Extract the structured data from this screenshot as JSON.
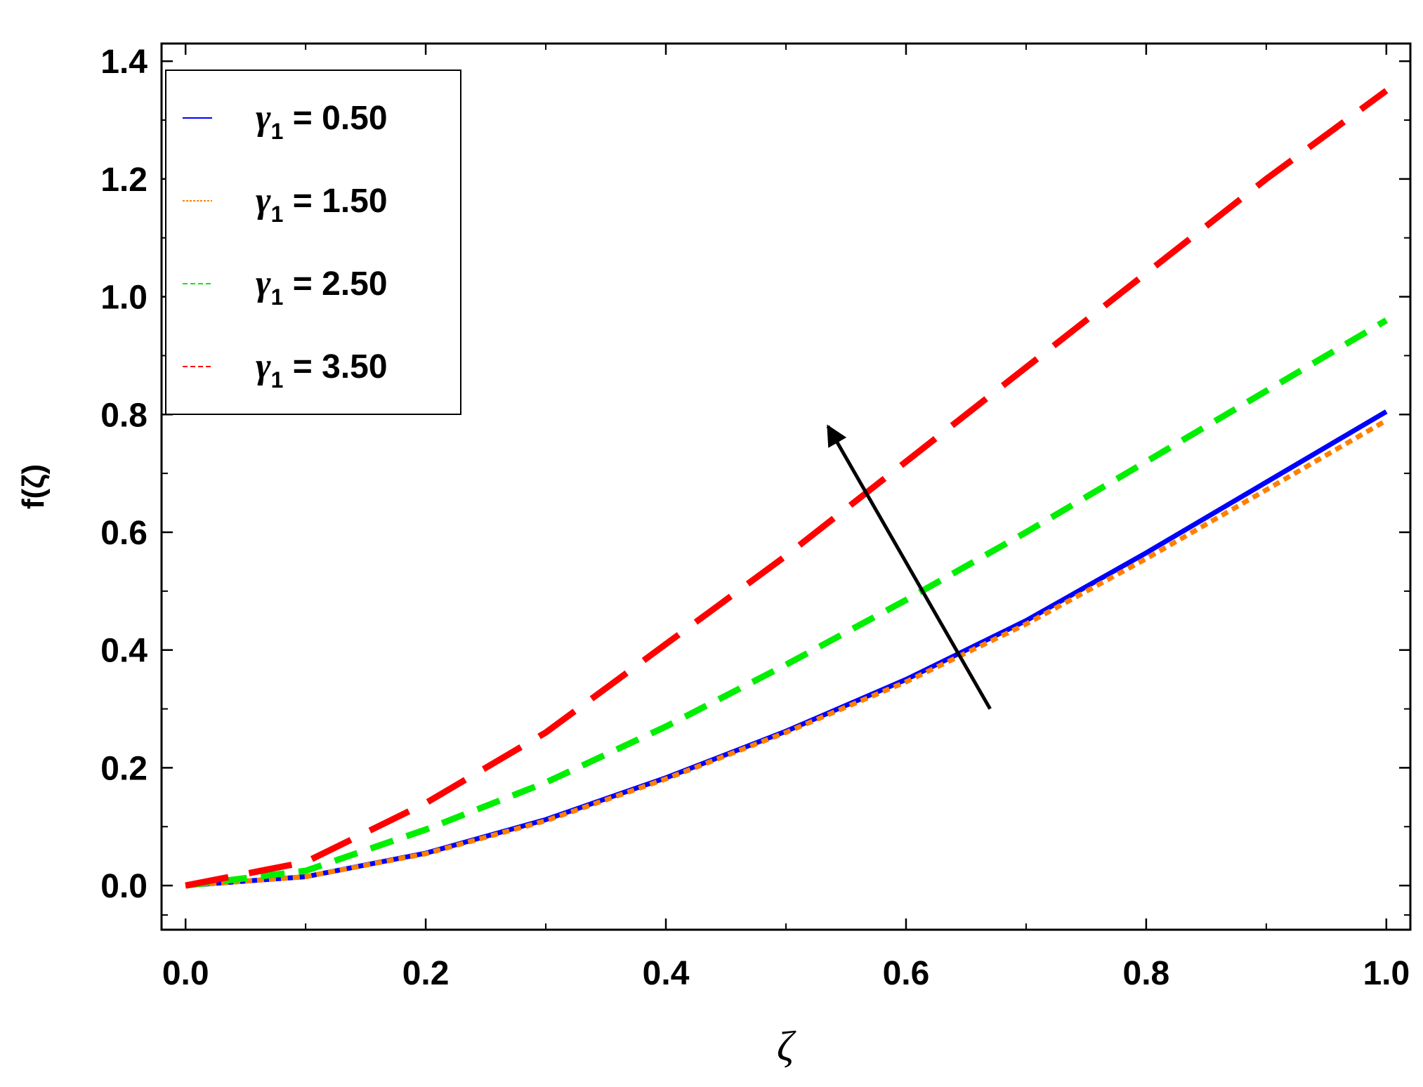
{
  "chart_data": {
    "type": "line",
    "title": "",
    "xlabel": "ζ",
    "ylabel": "f(ζ)",
    "xlim": [
      -0.02,
      1.02
    ],
    "ylim": [
      -0.075,
      1.43
    ],
    "xticks": [
      "0.0",
      "0.2",
      "0.4",
      "0.6",
      "0.8",
      "1.0"
    ],
    "yticks": [
      "0.0",
      "0.2",
      "0.4",
      "0.6",
      "0.8",
      "1.0",
      "1.2",
      "1.4"
    ],
    "legend_position": "top-left",
    "series": [
      {
        "name": "γ1 = 0.50",
        "name_symbol": "γ",
        "name_sub": "1",
        "name_value": " = 0.50",
        "color": "#0000ff",
        "style": "solid",
        "x": [
          0.0,
          0.1,
          0.2,
          0.3,
          0.4,
          0.5,
          0.6,
          0.7,
          0.8,
          0.9,
          1.0
        ],
        "y": [
          0.0,
          0.015,
          0.055,
          0.112,
          0.183,
          0.262,
          0.35,
          0.45,
          0.565,
          0.685,
          0.805
        ]
      },
      {
        "name": "γ1 = 1.50",
        "name_symbol": "γ",
        "name_sub": "1",
        "name_value": " = 1.50",
        "color": "#ff8000",
        "style": "dotted",
        "x": [
          0.0,
          0.1,
          0.2,
          0.3,
          0.4,
          0.5,
          0.6,
          0.7,
          0.8,
          0.9,
          1.0
        ],
        "y": [
          0.0,
          0.015,
          0.054,
          0.11,
          0.181,
          0.26,
          0.346,
          0.444,
          0.555,
          0.672,
          0.79
        ]
      },
      {
        "name": "γ1 = 2.50",
        "name_symbol": "γ",
        "name_sub": "1",
        "name_value": " = 2.50",
        "color": "#00ee00",
        "style": "dashed",
        "x": [
          0.0,
          0.1,
          0.2,
          0.3,
          0.4,
          0.5,
          0.6,
          0.7,
          0.8,
          0.9,
          1.0
        ],
        "y": [
          0.0,
          0.025,
          0.095,
          0.175,
          0.27,
          0.375,
          0.485,
          0.6,
          0.72,
          0.84,
          0.96
        ]
      },
      {
        "name": "γ1 = 3.50",
        "name_symbol": "γ",
        "name_sub": "1",
        "name_value": " = 3.50",
        "color": "#ff0000",
        "style": "long-dashed",
        "x": [
          0.0,
          0.1,
          0.2,
          0.3,
          0.4,
          0.5,
          0.6,
          0.7,
          0.8,
          0.9,
          1.0
        ],
        "y": [
          0.0,
          0.04,
          0.14,
          0.26,
          0.41,
          0.56,
          0.72,
          0.88,
          1.04,
          1.2,
          1.35
        ]
      }
    ],
    "annotations": [
      {
        "type": "arrow",
        "from": [
          0.67,
          0.3
        ],
        "to": [
          0.535,
          0.78
        ],
        "color": "#000000"
      }
    ]
  }
}
